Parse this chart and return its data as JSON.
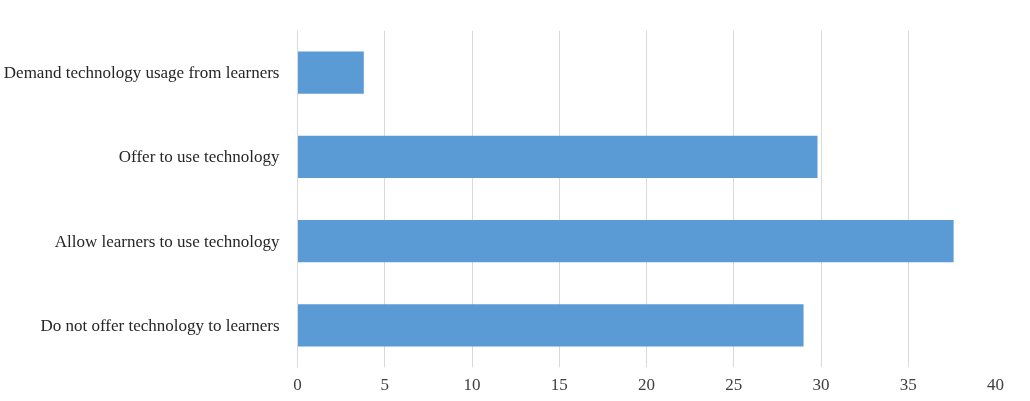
{
  "chart_data": {
    "type": "bar",
    "orientation": "horizontal",
    "categories": [
      "Demand technology usage from learners",
      "Offer to use technology",
      "Allow learners to use technology",
      "Do not offer technology to learners"
    ],
    "values": [
      3.8,
      29.8,
      37.6,
      29.0
    ],
    "color": "#5b9bd5",
    "xlim": [
      0,
      40
    ],
    "xticks": [
      0,
      5,
      10,
      15,
      20,
      25,
      30,
      35,
      40
    ],
    "grid": "x"
  }
}
